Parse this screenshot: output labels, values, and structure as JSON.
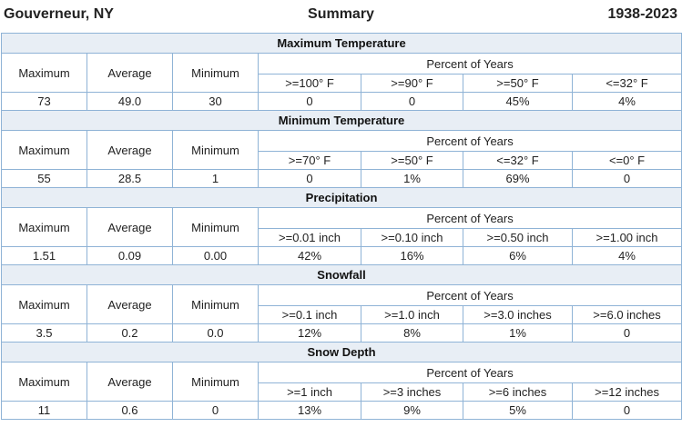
{
  "header": {
    "station": "Gouverneur, NY",
    "title": "Summary",
    "years": "1938-2023"
  },
  "columns": {
    "max": "Maximum",
    "avg": "Average",
    "min": "Minimum",
    "pct": "Percent of Years"
  },
  "sections": [
    {
      "title": "Maximum Temperature",
      "thresholds": [
        ">=100° F",
        ">=90° F",
        ">=50° F",
        "<=32° F"
      ],
      "values": [
        "73",
        "49.0",
        "30",
        "0",
        "0",
        "45%",
        "4%"
      ]
    },
    {
      "title": "Minimum Temperature",
      "thresholds": [
        ">=70° F",
        ">=50° F",
        "<=32° F",
        "<=0° F"
      ],
      "values": [
        "55",
        "28.5",
        "1",
        "0",
        "1%",
        "69%",
        "0"
      ]
    },
    {
      "title": "Precipitation",
      "thresholds": [
        ">=0.01 inch",
        ">=0.10 inch",
        ">=0.50 inch",
        ">=1.00 inch"
      ],
      "values": [
        "1.51",
        "0.09",
        "0.00",
        "42%",
        "16%",
        "6%",
        "4%"
      ]
    },
    {
      "title": "Snowfall",
      "thresholds": [
        ">=0.1 inch",
        ">=1.0 inch",
        ">=3.0 inches",
        ">=6.0 inches"
      ],
      "values": [
        "3.5",
        "0.2",
        "0.0",
        "12%",
        "8%",
        "1%",
        "0"
      ]
    },
    {
      "title": "Snow Depth",
      "thresholds": [
        ">=1 inch",
        ">=3 inches",
        ">=6 inches",
        ">=12 inches"
      ],
      "values": [
        "11",
        "0.6",
        "0",
        "13%",
        "9%",
        "5%",
        "0"
      ]
    }
  ]
}
